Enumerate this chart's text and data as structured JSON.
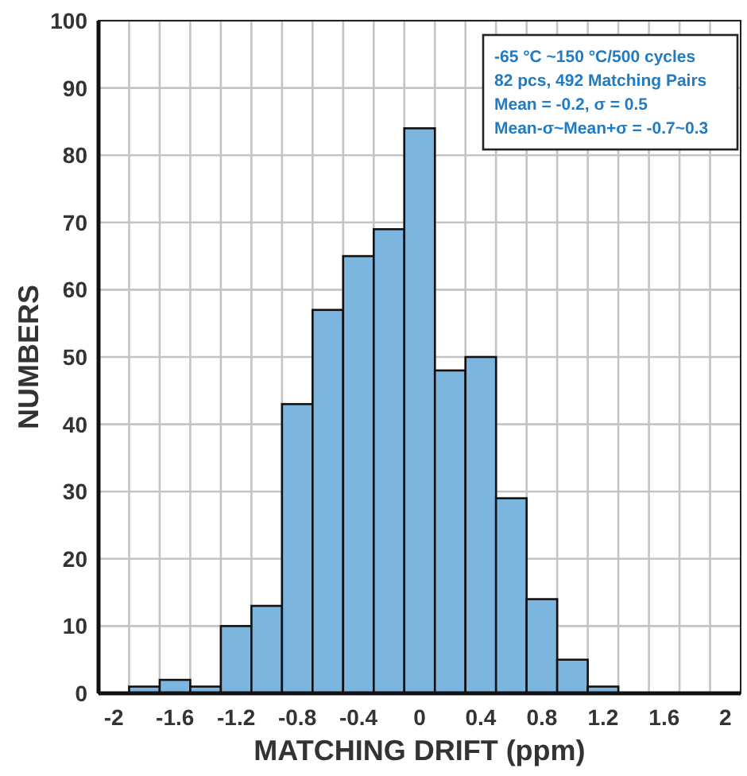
{
  "chart_data": {
    "type": "histogram",
    "xlabel": "MATCHING DRIFT (ppm)",
    "ylabel": "NUMBERS",
    "bins": [
      -1.9,
      -1.7,
      -1.5,
      -1.3,
      -1.1,
      -0.9,
      -0.7,
      -0.5,
      -0.3,
      -0.1,
      0.1,
      0.3,
      0.5,
      0.7,
      0.9,
      1.1,
      1.3,
      1.5,
      1.7,
      1.9
    ],
    "values": [
      1,
      2,
      1,
      10,
      13,
      43,
      57,
      65,
      69,
      84,
      48,
      50,
      29,
      14,
      5,
      1,
      0,
      0,
      0
    ],
    "color": "#7cb5de",
    "xlim": [
      -2.1,
      2.1
    ],
    "xticks": [
      -2,
      -1.6,
      -1.2,
      {
        "value": -0.8,
        "label": "-0.8"
      },
      {
        "value": -0.4,
        "label": "-0.4"
      },
      0,
      0.4,
      0.8,
      1.2,
      1.6,
      2
    ],
    "ylim": [
      0,
      100
    ],
    "yticks": [
      0,
      10,
      20,
      30,
      40,
      50,
      60,
      70,
      80,
      90,
      100
    ],
    "grid": true,
    "annotations": [
      "-65 °C ~150 °C/500 cycles",
      "82 pcs, 492 Matching Pairs",
      "Mean = -0.2, σ = 0.5",
      "Mean-σ~Mean+σ = -0.7~0.3"
    ]
  }
}
